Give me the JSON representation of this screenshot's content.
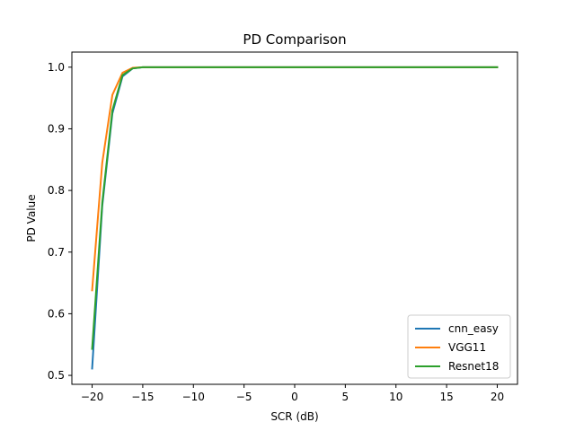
{
  "chart_data": {
    "type": "line",
    "title": "PD Comparison",
    "xlabel": "SCR (dB)",
    "ylabel": "PD Value",
    "xlim": [
      -22,
      22
    ],
    "ylim": [
      0.4855,
      1.0245
    ],
    "xticks": [
      -20,
      -15,
      -10,
      -5,
      0,
      5,
      10,
      15,
      20
    ],
    "xtick_labels": [
      "−20",
      "−15",
      "−10",
      "−5",
      "0",
      "5",
      "10",
      "15",
      "20"
    ],
    "yticks": [
      0.5,
      0.6,
      0.7,
      0.8,
      0.9,
      1.0
    ],
    "ytick_labels": [
      "0.5",
      "0.6",
      "0.7",
      "0.8",
      "0.9",
      "1.0"
    ],
    "grid": false,
    "legend": "lower-right",
    "x": [
      -20,
      -19,
      -18,
      -17,
      -16,
      -15,
      -14,
      -13,
      -12,
      -11,
      -10,
      -9,
      -8,
      -7,
      -6,
      -5,
      -4,
      -3,
      -2,
      -1,
      0,
      1,
      2,
      3,
      4,
      5,
      6,
      7,
      8,
      9,
      10,
      11,
      12,
      13,
      14,
      15,
      16,
      17,
      18,
      19,
      20
    ],
    "series": [
      {
        "name": "cnn_easy",
        "color": "#1f77b4",
        "values": [
          0.511,
          0.775,
          0.925,
          0.985,
          0.998,
          1.0,
          1.0,
          1.0,
          1.0,
          1.0,
          1.0,
          1.0,
          1.0,
          1.0,
          1.0,
          1.0,
          1.0,
          1.0,
          1.0,
          1.0,
          1.0,
          1.0,
          1.0,
          1.0,
          1.0,
          1.0,
          1.0,
          1.0,
          1.0,
          1.0,
          1.0,
          1.0,
          1.0,
          1.0,
          1.0,
          1.0,
          1.0,
          1.0,
          1.0,
          1.0,
          1.0
        ]
      },
      {
        "name": "VGG11",
        "color": "#ff7f0e",
        "values": [
          0.638,
          0.845,
          0.955,
          0.991,
          0.999,
          1.0,
          1.0,
          1.0,
          1.0,
          1.0,
          1.0,
          1.0,
          1.0,
          1.0,
          1.0,
          1.0,
          1.0,
          1.0,
          1.0,
          1.0,
          1.0,
          1.0,
          1.0,
          1.0,
          1.0,
          1.0,
          1.0,
          1.0,
          1.0,
          1.0,
          1.0,
          1.0,
          1.0,
          1.0,
          1.0,
          1.0,
          1.0,
          1.0,
          1.0,
          1.0,
          1.0
        ]
      },
      {
        "name": "Resnet18",
        "color": "#2ca02c",
        "values": [
          0.543,
          0.78,
          0.93,
          0.987,
          0.998,
          1.0,
          1.0,
          1.0,
          1.0,
          1.0,
          1.0,
          1.0,
          1.0,
          1.0,
          1.0,
          1.0,
          1.0,
          1.0,
          1.0,
          1.0,
          1.0,
          1.0,
          1.0,
          1.0,
          1.0,
          1.0,
          1.0,
          1.0,
          1.0,
          1.0,
          1.0,
          1.0,
          1.0,
          1.0,
          1.0,
          1.0,
          1.0,
          1.0,
          1.0,
          1.0,
          1.0
        ]
      }
    ]
  }
}
